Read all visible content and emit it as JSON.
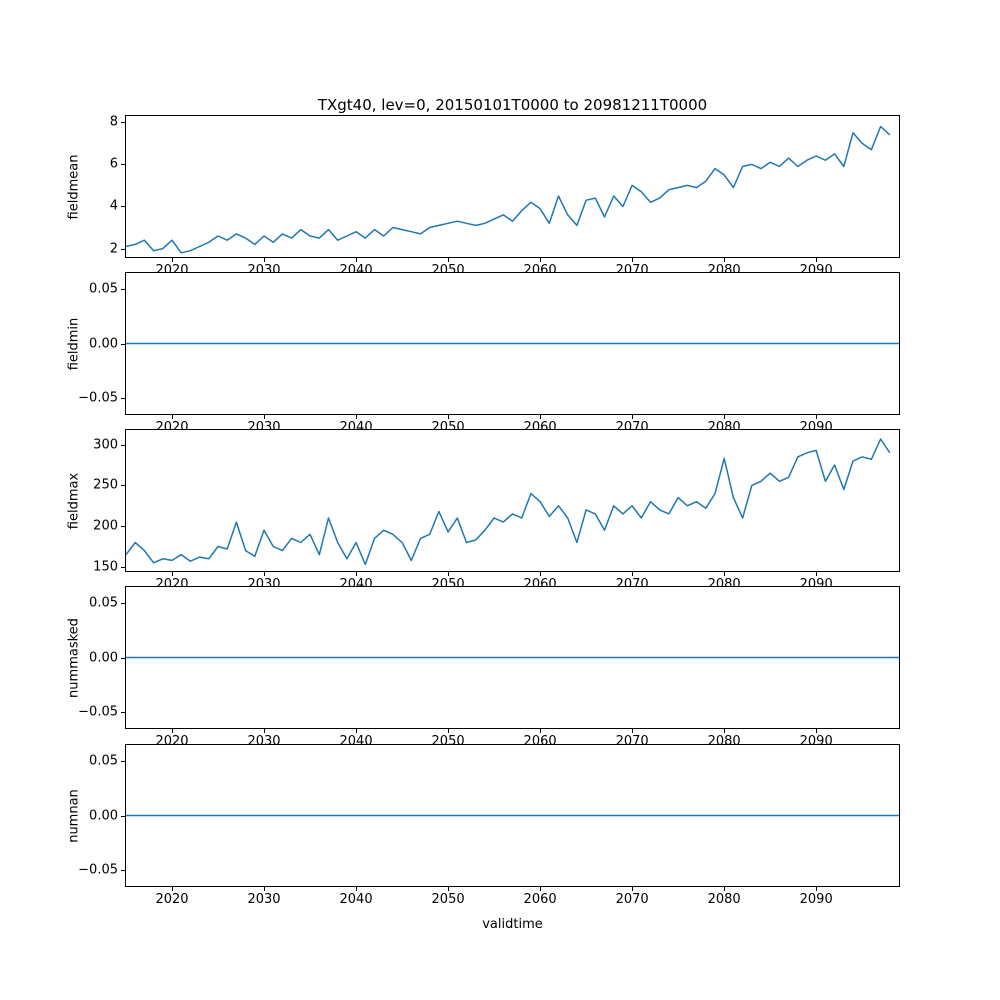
{
  "chart_data": {
    "type": "line",
    "title": "TXgt40, lev=0, 20150101T0000 to 20981211T0000",
    "xlabel": "validtime",
    "line_color": "#1f77b4",
    "xlim": [
      2015,
      2099
    ],
    "x_start": 2015,
    "x_step": 1,
    "xticks": [
      2020,
      2030,
      2040,
      2050,
      2060,
      2070,
      2080,
      2090
    ],
    "xticklabels": [
      "2020",
      "2030",
      "2040",
      "2050",
      "2060",
      "2070",
      "2080",
      "2090"
    ],
    "legend": "none",
    "grid": false,
    "subplots": [
      {
        "name": "fieldmean",
        "ylabel": "fieldmean",
        "ylim": [
          1.6,
          8.3
        ],
        "yticks": [
          2,
          4,
          6,
          8
        ],
        "yticklabels": [
          "2",
          "4",
          "6",
          "8"
        ],
        "values": [
          2.1,
          2.2,
          2.4,
          1.9,
          2.0,
          2.4,
          1.8,
          1.9,
          2.1,
          2.3,
          2.6,
          2.4,
          2.7,
          2.5,
          2.2,
          2.6,
          2.3,
          2.7,
          2.5,
          2.9,
          2.6,
          2.5,
          2.9,
          2.4,
          2.6,
          2.8,
          2.5,
          2.9,
          2.6,
          3.0,
          2.9,
          2.8,
          2.7,
          3.0,
          3.1,
          3.2,
          3.3,
          3.2,
          3.1,
          3.2,
          3.4,
          3.6,
          3.3,
          3.8,
          4.2,
          3.9,
          3.2,
          4.5,
          3.6,
          3.1,
          4.3,
          4.4,
          3.5,
          4.5,
          4.0,
          5.0,
          4.7,
          4.2,
          4.4,
          4.8,
          4.9,
          5.0,
          4.9,
          5.2,
          5.8,
          5.5,
          4.9,
          5.9,
          6.0,
          5.8,
          6.1,
          5.9,
          6.3,
          5.9,
          6.2,
          6.4,
          6.2,
          6.5,
          5.9,
          7.5,
          7.0,
          6.7,
          7.8,
          7.4
        ]
      },
      {
        "name": "fieldmin",
        "ylabel": "fieldmin",
        "ylim": [
          -0.065,
          0.065
        ],
        "yticks": [
          -0.05,
          0,
          0.05
        ],
        "yticklabels": [
          "−0.05",
          "0.00",
          "0.05"
        ],
        "constant": 0
      },
      {
        "name": "fieldmax",
        "ylabel": "fieldmax",
        "ylim": [
          145,
          318
        ],
        "yticks": [
          150,
          200,
          250,
          300
        ],
        "yticklabels": [
          "150",
          "200",
          "250",
          "300"
        ],
        "values": [
          165,
          180,
          170,
          155,
          160,
          158,
          165,
          157,
          162,
          160,
          175,
          172,
          205,
          170,
          163,
          195,
          175,
          170,
          185,
          180,
          190,
          165,
          210,
          180,
          160,
          180,
          153,
          185,
          195,
          190,
          180,
          158,
          185,
          190,
          218,
          193,
          210,
          180,
          183,
          195,
          210,
          205,
          215,
          210,
          240,
          230,
          212,
          225,
          210,
          180,
          220,
          215,
          195,
          225,
          215,
          225,
          210,
          230,
          220,
          215,
          235,
          225,
          230,
          222,
          240,
          283,
          235,
          210,
          250,
          255,
          265,
          255,
          260,
          285,
          290,
          293,
          255,
          275,
          245,
          280,
          285,
          282,
          307,
          290
        ]
      },
      {
        "name": "nummasked",
        "ylabel": "nummasked",
        "ylim": [
          -0.065,
          0.065
        ],
        "yticks": [
          -0.05,
          0,
          0.05
        ],
        "yticklabels": [
          "−0.05",
          "0.00",
          "0.05"
        ],
        "constant": 0
      },
      {
        "name": "numnan",
        "ylabel": "numnan",
        "ylim": [
          -0.065,
          0.065
        ],
        "yticks": [
          -0.05,
          0,
          0.05
        ],
        "yticklabels": [
          "−0.05",
          "0.00",
          "0.05"
        ],
        "constant": 0
      }
    ]
  }
}
